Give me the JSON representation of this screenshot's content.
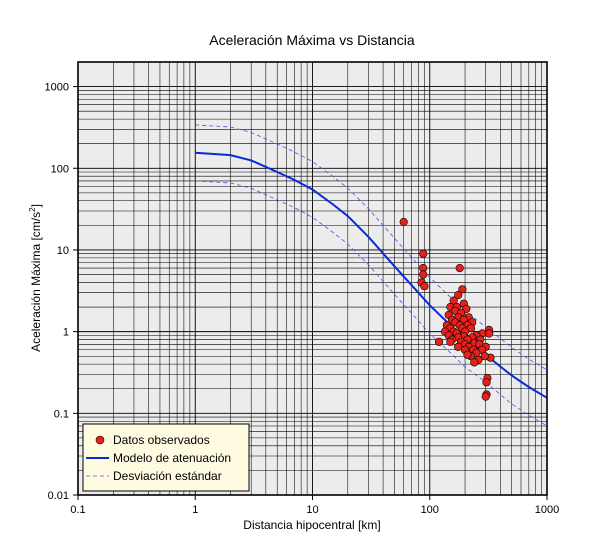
{
  "chart_data": {
    "type": "scatter",
    "title": "Aceleración Máxima vs Distancia",
    "xlabel": "Distancia hipocentral [km]",
    "ylabel_main": "Aceleración Máxima [cm/s",
    "ylabel_sup": "2",
    "ylabel_end": "]",
    "x_scale": "log",
    "y_scale": "log",
    "xlim": [
      0.1,
      1000
    ],
    "ylim": [
      0.01,
      2000
    ],
    "x_ticks": [
      0.1,
      1,
      10,
      100,
      1000
    ],
    "x_tick_labels": [
      "0.1",
      "1",
      "10",
      "100",
      "1000"
    ],
    "y_ticks": [
      0.01,
      0.1,
      1,
      10,
      100,
      1000
    ],
    "y_tick_labels": [
      "0.01",
      "0.1",
      "1",
      "10",
      "100",
      "1000"
    ],
    "grid": true,
    "legend_position": "bottom-left",
    "colors": {
      "plot_bg": "#ececec",
      "grid": "#000000",
      "points": "#e8201a",
      "model": "#0a2ad6",
      "deviation": "#4a55e6",
      "legend_bg": "#fffbe0"
    },
    "series": [
      {
        "name": "Datos observados",
        "kind": "points",
        "points": [
          [
            60,
            22
          ],
          [
            88,
            9
          ],
          [
            88,
            6
          ],
          [
            88,
            5
          ],
          [
            85,
            4
          ],
          [
            90,
            3.6
          ],
          [
            180,
            6
          ],
          [
            190,
            3.3
          ],
          [
            175,
            2.8
          ],
          [
            160,
            2.4
          ],
          [
            195,
            2.2
          ],
          [
            150,
            2.0
          ],
          [
            170,
            2.0
          ],
          [
            205,
            1.9
          ],
          [
            165,
            1.8
          ],
          [
            185,
            1.7
          ],
          [
            145,
            1.6
          ],
          [
            175,
            1.5
          ],
          [
            215,
            1.5
          ],
          [
            155,
            1.4
          ],
          [
            195,
            1.4
          ],
          [
            165,
            1.3
          ],
          [
            230,
            1.3
          ],
          [
            140,
            1.2
          ],
          [
            180,
            1.2
          ],
          [
            210,
            1.2
          ],
          [
            150,
            1.1
          ],
          [
            190,
            1.1
          ],
          [
            225,
            1.1
          ],
          [
            160,
            1.0
          ],
          [
            200,
            1.0
          ],
          [
            135,
            1.0
          ],
          [
            320,
            1.05
          ],
          [
            320,
            0.95
          ],
          [
            170,
            0.95
          ],
          [
            280,
            0.95
          ],
          [
            250,
            0.9
          ],
          [
            145,
            0.9
          ],
          [
            195,
            0.88
          ],
          [
            175,
            0.85
          ],
          [
            230,
            0.85
          ],
          [
            155,
            0.8
          ],
          [
            210,
            0.8
          ],
          [
            270,
            0.8
          ],
          [
            150,
            0.75
          ],
          [
            185,
            0.75
          ],
          [
            120,
            0.75
          ],
          [
            240,
            0.72
          ],
          [
            200,
            0.7
          ],
          [
            265,
            0.7
          ],
          [
            215,
            0.65
          ],
          [
            175,
            0.65
          ],
          [
            300,
            0.65
          ],
          [
            235,
            0.6
          ],
          [
            280,
            0.6
          ],
          [
            200,
            0.6
          ],
          [
            250,
            0.55
          ],
          [
            225,
            0.5
          ],
          [
            330,
            0.48
          ],
          [
            260,
            0.45
          ],
          [
            240,
            0.42
          ],
          [
            210,
            0.52
          ],
          [
            295,
            0.5
          ],
          [
            310,
            0.27
          ],
          [
            305,
            0.24
          ],
          [
            305,
            0.17
          ],
          [
            300,
            0.16
          ]
        ]
      },
      {
        "name": "Modelo de atenuación",
        "kind": "line",
        "x": [
          1,
          2,
          3,
          5,
          7,
          10,
          15,
          20,
          30,
          50,
          70,
          100,
          150,
          200,
          300,
          500,
          700,
          1000
        ],
        "y": [
          155,
          145,
          125,
          90,
          72,
          55,
          36,
          26,
          14.5,
          6.3,
          3.7,
          2.1,
          1.2,
          0.82,
          0.52,
          0.29,
          0.21,
          0.155
        ]
      },
      {
        "name": "Desviación estándar",
        "kind": "dashed-band",
        "x": [
          1,
          2,
          3,
          5,
          7,
          10,
          15,
          20,
          30,
          50,
          70,
          100,
          150,
          200,
          300,
          500,
          700,
          1000
        ],
        "upper": [
          340,
          320,
          275,
          198,
          158,
          121,
          79,
          57,
          32,
          13.9,
          8.1,
          4.6,
          2.64,
          1.8,
          1.14,
          0.64,
          0.46,
          0.34
        ],
        "lower": [
          70,
          66,
          57,
          41,
          33,
          25,
          16.4,
          11.8,
          6.6,
          2.86,
          1.68,
          0.95,
          0.55,
          0.37,
          0.24,
          0.13,
          0.095,
          0.07
        ]
      }
    ]
  }
}
